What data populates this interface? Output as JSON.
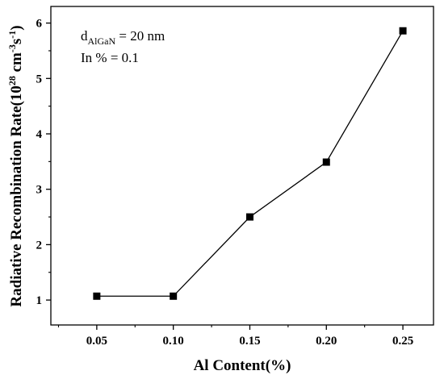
{
  "chart_data": {
    "type": "line",
    "x": [
      0.05,
      0.1,
      0.15,
      0.2,
      0.25
    ],
    "series": [
      {
        "values": [
          1.07,
          1.07,
          2.5,
          3.49,
          5.86
        ]
      }
    ],
    "xlabel": "Al Content(%)",
    "ylabel": {
      "prefix": "Radiative Recombination Rate(10",
      "exp1": "28",
      "mid": " cm",
      "exp2": "-3",
      "mid2": "s",
      "exp3": "-1",
      "suffix": ")"
    },
    "xlim": [
      0.02,
      0.27
    ],
    "ylim": [
      0.55,
      6.3
    ],
    "xticks": [
      "0.05",
      "0.10",
      "0.15",
      "0.20",
      "0.25"
    ],
    "xtick_values": [
      0.05,
      0.1,
      0.15,
      0.2,
      0.25
    ],
    "yticks": [
      "1",
      "2",
      "3",
      "4",
      "5",
      "6"
    ],
    "ytick_values": [
      1,
      2,
      3,
      4,
      5,
      6
    ],
    "grid": false,
    "annotations": {
      "line1_main": "d",
      "line1_sub": "AlGaN",
      "line1_rest": " = 20 nm",
      "line2": "In % = 0.1"
    },
    "colors": {
      "line": "#000000",
      "marker": "#000000"
    }
  }
}
